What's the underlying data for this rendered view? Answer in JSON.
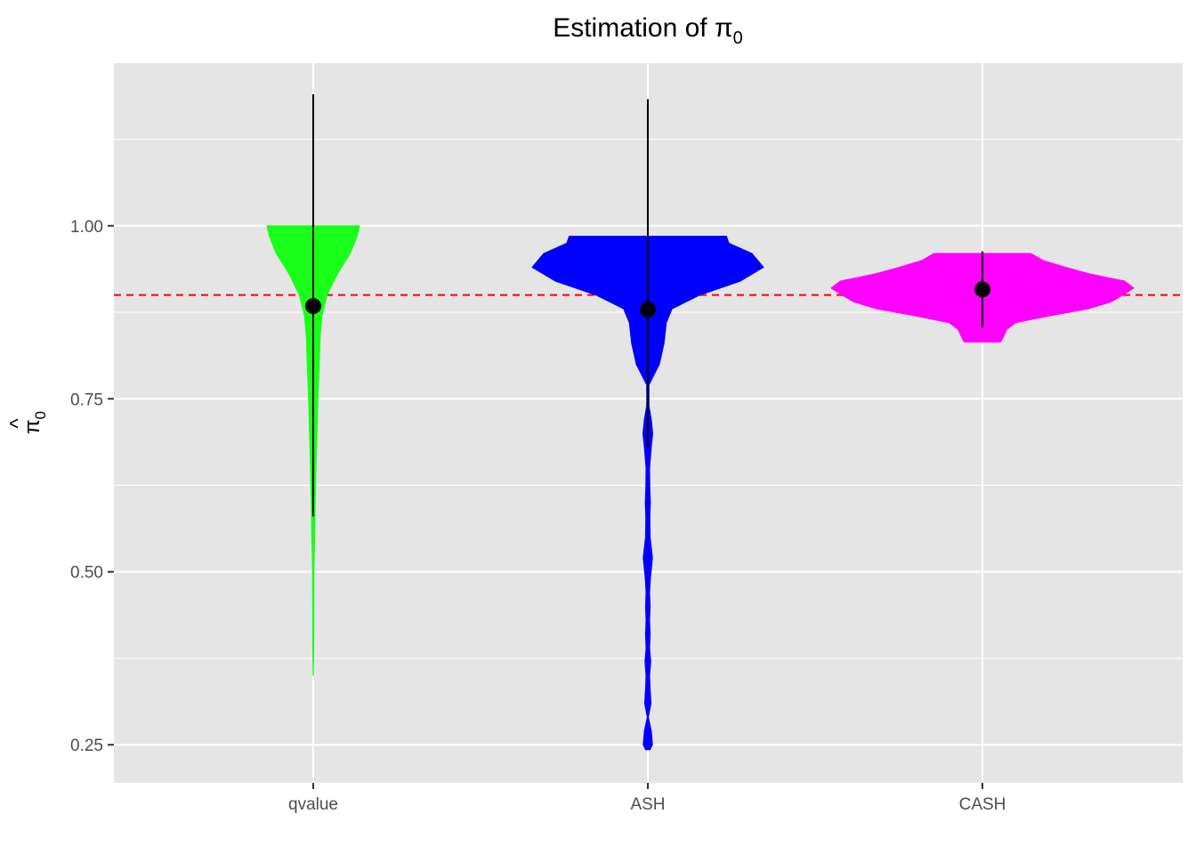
{
  "chart_data": {
    "type": "violin",
    "title": "Estimation of π",
    "title_subscript": "0",
    "ylabel": "π",
    "ylabel_subscript": "0",
    "ylabel_hat": "^",
    "xlabel": "",
    "categories": [
      "qvalue",
      "ASH",
      "CASH"
    ],
    "y_ticks": [
      "0.25",
      "0.50",
      "0.75",
      "1.00"
    ],
    "y_tick_values": [
      0.25,
      0.5,
      0.75,
      1.0
    ],
    "ylim": [
      0.195,
      1.235
    ],
    "reference_line": {
      "value": 0.9,
      "style": "dashed",
      "color": "#ff0000"
    },
    "colors": {
      "panel": "#e5e5e5",
      "grid": "#ffffff",
      "point": "#000000"
    },
    "series": [
      {
        "category": "qvalue",
        "color": "#1aff1a",
        "mean": 0.884,
        "range": [
          0.58,
          1.19
        ],
        "profile": [
          [
            0.35,
            0.004
          ],
          [
            0.4,
            0.012
          ],
          [
            0.45,
            0.013
          ],
          [
            0.5,
            0.015
          ],
          [
            0.55,
            0.03
          ],
          [
            0.6,
            0.045
          ],
          [
            0.65,
            0.06
          ],
          [
            0.7,
            0.08
          ],
          [
            0.75,
            0.1
          ],
          [
            0.78,
            0.12
          ],
          [
            0.8,
            0.13
          ],
          [
            0.84,
            0.15
          ],
          [
            0.87,
            0.19
          ],
          [
            0.9,
            0.3
          ],
          [
            0.93,
            0.52
          ],
          [
            0.96,
            0.8
          ],
          [
            0.985,
            0.95
          ],
          [
            1.0,
            1.0
          ]
        ]
      },
      {
        "category": "ASH",
        "color": "#0000ff",
        "mean": 0.879,
        "range": [
          0.68,
          1.183
        ],
        "profile": [
          [
            0.243,
            0.02
          ],
          [
            0.25,
            0.04
          ],
          [
            0.27,
            0.03
          ],
          [
            0.29,
            0.005
          ],
          [
            0.31,
            0.028
          ],
          [
            0.33,
            0.02
          ],
          [
            0.35,
            0.015
          ],
          [
            0.37,
            0.025
          ],
          [
            0.39,
            0.015
          ],
          [
            0.41,
            0.02
          ],
          [
            0.43,
            0.015
          ],
          [
            0.45,
            0.02
          ],
          [
            0.47,
            0.015
          ],
          [
            0.49,
            0.022
          ],
          [
            0.52,
            0.04
          ],
          [
            0.55,
            0.02
          ],
          [
            0.58,
            0.018
          ],
          [
            0.6,
            0.022
          ],
          [
            0.62,
            0.018
          ],
          [
            0.65,
            0.015
          ],
          [
            0.68,
            0.03
          ],
          [
            0.7,
            0.042
          ],
          [
            0.72,
            0.03
          ],
          [
            0.74,
            0.01
          ],
          [
            0.77,
            0.01
          ],
          [
            0.8,
            0.1
          ],
          [
            0.83,
            0.14
          ],
          [
            0.86,
            0.16
          ],
          [
            0.88,
            0.21
          ],
          [
            0.9,
            0.45
          ],
          [
            0.92,
            0.8
          ],
          [
            0.94,
            1.0
          ],
          [
            0.96,
            0.9
          ],
          [
            0.975,
            0.7
          ],
          [
            0.985,
            0.68
          ]
        ]
      },
      {
        "category": "CASH",
        "color": "#ff00ff",
        "mean": 0.908,
        "range": [
          0.853,
          0.963
        ],
        "profile": [
          [
            0.832,
            0.12
          ],
          [
            0.84,
            0.14
          ],
          [
            0.85,
            0.16
          ],
          [
            0.86,
            0.22
          ],
          [
            0.87,
            0.45
          ],
          [
            0.88,
            0.7
          ],
          [
            0.89,
            0.85
          ],
          [
            0.9,
            0.93
          ],
          [
            0.91,
            1.0
          ],
          [
            0.92,
            0.94
          ],
          [
            0.93,
            0.72
          ],
          [
            0.94,
            0.55
          ],
          [
            0.95,
            0.4
          ],
          [
            0.96,
            0.32
          ]
        ]
      }
    ]
  }
}
